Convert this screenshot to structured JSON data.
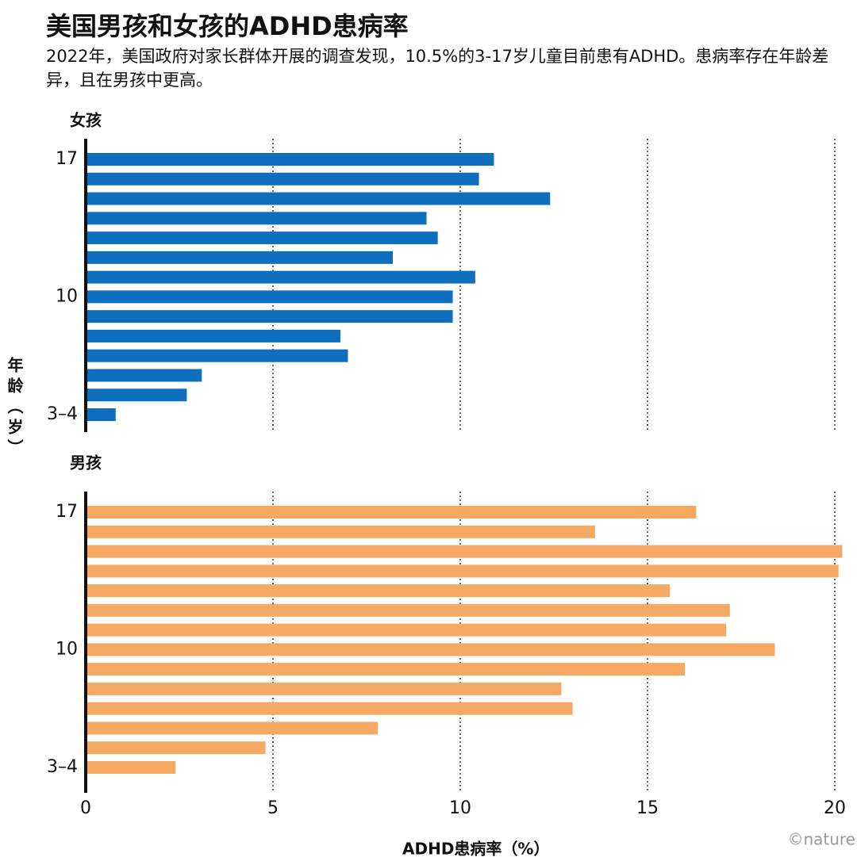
{
  "title": "美国男孩和女孩的ADHD患病率",
  "subtitle": "2022年，美国政府对家长群体开展的调查发现，10.5%的3-17岁儿童目前患有ADHD。患病率存在年龄差异，且在男孩中更高。",
  "ylabel": "年龄（岁）",
  "xlabel": "ADHD患病率（%）",
  "source": "©nature",
  "chart_data": [
    {
      "type": "bar",
      "orientation": "horizontal",
      "title": "女孩",
      "color": "#0f6fbf",
      "categories": [
        "17",
        null,
        null,
        null,
        null,
        null,
        null,
        "10",
        null,
        null,
        null,
        null,
        null,
        "3–4"
      ],
      "values": [
        10.9,
        10.5,
        12.4,
        9.1,
        9.4,
        8.2,
        10.4,
        9.8,
        9.8,
        6.8,
        7.0,
        3.1,
        2.7,
        0.8
      ],
      "xlim": [
        0,
        20
      ],
      "xticks": [
        0,
        5,
        10,
        15,
        20
      ],
      "grid": true
    },
    {
      "type": "bar",
      "orientation": "horizontal",
      "title": "男孩",
      "color": "#f6a962",
      "categories": [
        "17",
        null,
        null,
        null,
        null,
        null,
        null,
        "10",
        null,
        null,
        null,
        null,
        null,
        "3–4"
      ],
      "values": [
        16.3,
        13.6,
        20.2,
        20.1,
        15.6,
        17.2,
        17.1,
        18.4,
        16.0,
        12.7,
        13.0,
        7.8,
        4.8,
        2.4
      ],
      "xlim": [
        0,
        20
      ],
      "xticks": [
        0,
        5,
        10,
        15,
        20
      ],
      "grid": true
    }
  ]
}
